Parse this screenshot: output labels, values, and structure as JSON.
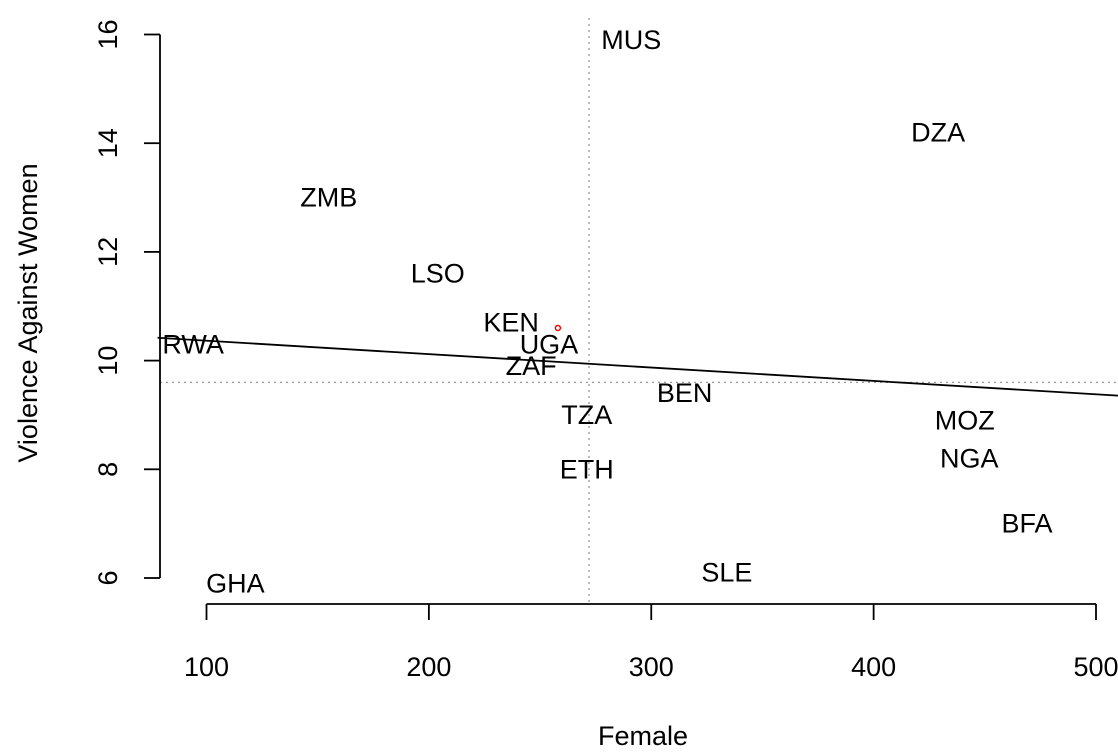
{
  "chart_data": {
    "type": "scatter",
    "title": "",
    "xlabel": "Female",
    "ylabel": "Violence Against Women",
    "xlim": [
      78,
      512
    ],
    "ylim": [
      5.5,
      16.5
    ],
    "xticks": [
      100,
      200,
      300,
      400,
      500
    ],
    "yticks": [
      6,
      8,
      10,
      12,
      14,
      16
    ],
    "x_tick_labels": [
      "100",
      "200",
      "300",
      "400",
      "500"
    ],
    "y_tick_labels": [
      "6",
      "8",
      "10",
      "12",
      "14",
      "16"
    ],
    "points": [
      {
        "label": "MUS",
        "x": 291,
        "y": 15.9
      },
      {
        "label": "DZA",
        "x": 429,
        "y": 14.2
      },
      {
        "label": "ZMB",
        "x": 155,
        "y": 13.0
      },
      {
        "label": "LSO",
        "x": 204,
        "y": 11.6
      },
      {
        "label": "KEN",
        "x": 237,
        "y": 10.7
      },
      {
        "label": "RWA",
        "x": 94,
        "y": 10.3
      },
      {
        "label": "UGA",
        "x": 254,
        "y": 10.3
      },
      {
        "label": "ZAF",
        "x": 246,
        "y": 9.9
      },
      {
        "label": "BEN",
        "x": 315,
        "y": 9.4
      },
      {
        "label": "TZA",
        "x": 271,
        "y": 9.0
      },
      {
        "label": "MOZ",
        "x": 441,
        "y": 8.9
      },
      {
        "label": "NGA",
        "x": 443,
        "y": 8.2
      },
      {
        "label": "ETH",
        "x": 271,
        "y": 8.0
      },
      {
        "label": "BFA",
        "x": 469,
        "y": 7.0
      },
      {
        "label": "SLE",
        "x": 334,
        "y": 6.1
      },
      {
        "label": "GHA",
        "x": 113,
        "y": 5.9
      }
    ],
    "highlight_point": {
      "x": 258,
      "y": 10.6,
      "color": "#ff0000"
    },
    "regression_line": {
      "x": [
        78,
        512
      ],
      "y": [
        10.42,
        9.35
      ]
    },
    "reference_lines": {
      "vertical_x": 272,
      "horizontal_y": 9.6,
      "style": "dotted",
      "color": "#999999"
    },
    "grid": false,
    "legend": "none"
  }
}
